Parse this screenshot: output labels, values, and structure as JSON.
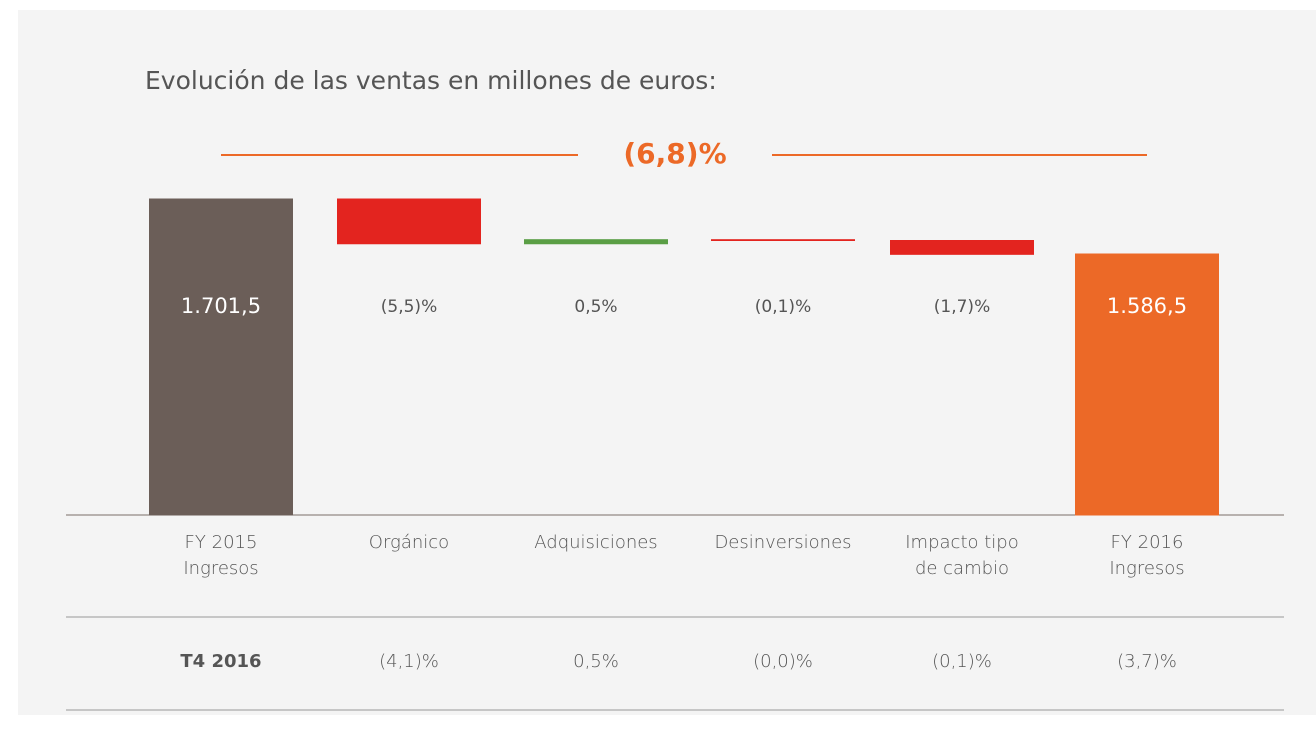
{
  "chart_data": {
    "type": "waterfall",
    "title": "Evolución de las ventas en millones de euros:",
    "total_label": "(6,8)%",
    "categories": [
      "FY 2015\nIngresos",
      "Orgánico",
      "Adquisiciones",
      "Desinversiones",
      "Impacto tipo\nde cambio",
      "FY 2016\nIngresos"
    ],
    "measure": [
      "total",
      "relative",
      "relative",
      "relative",
      "relative",
      "total"
    ],
    "values": [
      1701.5,
      -5.5,
      0.5,
      -0.1,
      -1.7,
      1586.5
    ],
    "value_labels": [
      "1.701,5",
      "(5,5)%",
      "0,5%",
      "(0,1)%",
      "(1,7)%",
      "1.586,5"
    ],
    "colors": [
      "#6b5e58",
      "#e3241f",
      "#5a9e45",
      "#e3241f",
      "#e3241f",
      "#ec6927"
    ]
  },
  "table": {
    "rows": [
      [
        "T4 2016",
        "(4,1)%",
        "0,5%",
        "(0,0)%",
        "(0,1)%",
        "(3,7)%"
      ]
    ]
  }
}
